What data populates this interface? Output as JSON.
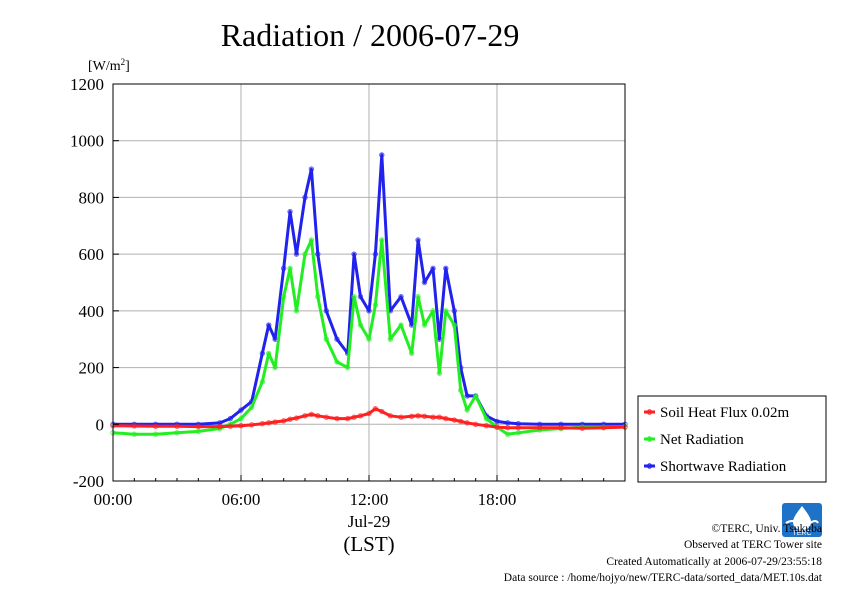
{
  "chart_data": {
    "type": "line",
    "title": "Radiation / 2006-07-29",
    "ylabel_unit": "[W/m",
    "ylabel_sup": "2",
    "ylabel_close": "]",
    "xlabel_date": "Jul-29",
    "xlabel_tz": "(LST)",
    "ylim": [
      -200,
      1200
    ],
    "yticks": [
      -200,
      0,
      200,
      400,
      600,
      800,
      1000,
      1200
    ],
    "xlim_hours": [
      0,
      24
    ],
    "xticks": [
      {
        "hour": 0,
        "label": "00:00"
      },
      {
        "hour": 6,
        "label": "06:00"
      },
      {
        "hour": 12,
        "label": "12:00"
      },
      {
        "hour": 18,
        "label": "18:00"
      }
    ],
    "grid": true,
    "legend_position": "right",
    "x": [
      0,
      1,
      2,
      3,
      4,
      5,
      5.5,
      6,
      6.5,
      7,
      7.3,
      7.6,
      8,
      8.3,
      8.6,
      9,
      9.3,
      9.6,
      10,
      10.5,
      11,
      11.3,
      11.6,
      12,
      12.3,
      12.6,
      13,
      13.5,
      14,
      14.3,
      14.6,
      15,
      15.3,
      15.6,
      16,
      16.3,
      16.6,
      17,
      17.5,
      18,
      18.5,
      19,
      20,
      21,
      22,
      23,
      24
    ],
    "series": [
      {
        "name": "Soil Heat Flux 0.02m",
        "color": "#ff2020",
        "values": [
          -5,
          -6,
          -7,
          -7,
          -8,
          -8,
          -7,
          -5,
          -2,
          2,
          5,
          8,
          12,
          18,
          22,
          30,
          35,
          30,
          25,
          20,
          20,
          25,
          30,
          38,
          55,
          45,
          30,
          25,
          28,
          30,
          28,
          25,
          25,
          20,
          15,
          10,
          5,
          0,
          -5,
          -10,
          -12,
          -12,
          -12,
          -12,
          -14,
          -12,
          -10
        ]
      },
      {
        "name": "Net Radiation",
        "color": "#22ee22",
        "values": [
          -30,
          -35,
          -35,
          -30,
          -25,
          -15,
          0,
          20,
          60,
          150,
          250,
          200,
          450,
          550,
          400,
          600,
          650,
          450,
          300,
          220,
          200,
          450,
          350,
          300,
          420,
          650,
          300,
          350,
          250,
          450,
          350,
          400,
          180,
          400,
          350,
          120,
          50,
          100,
          20,
          -10,
          -35,
          -30,
          -20,
          -15,
          -10,
          -10,
          -8
        ]
      },
      {
        "name": "Shortwave Radiation",
        "color": "#2222ee",
        "values": [
          0,
          0,
          0,
          0,
          0,
          5,
          20,
          50,
          80,
          250,
          350,
          300,
          550,
          750,
          600,
          800,
          900,
          600,
          400,
          300,
          250,
          600,
          450,
          400,
          600,
          950,
          400,
          450,
          350,
          650,
          500,
          550,
          300,
          550,
          400,
          200,
          100,
          100,
          30,
          10,
          5,
          2,
          0,
          0,
          0,
          0,
          0
        ]
      }
    ]
  },
  "credits": {
    "copyright": "©TERC, Univ. Tsukuba",
    "observed": "Observed at TERC Tower site",
    "created": "Created Automatically at 2006-07-29/23:55:18",
    "source": "Data source : /home/hojyo/new/TERC-data/sorted_data/MET.10s.dat"
  },
  "logo_text": "TERC"
}
